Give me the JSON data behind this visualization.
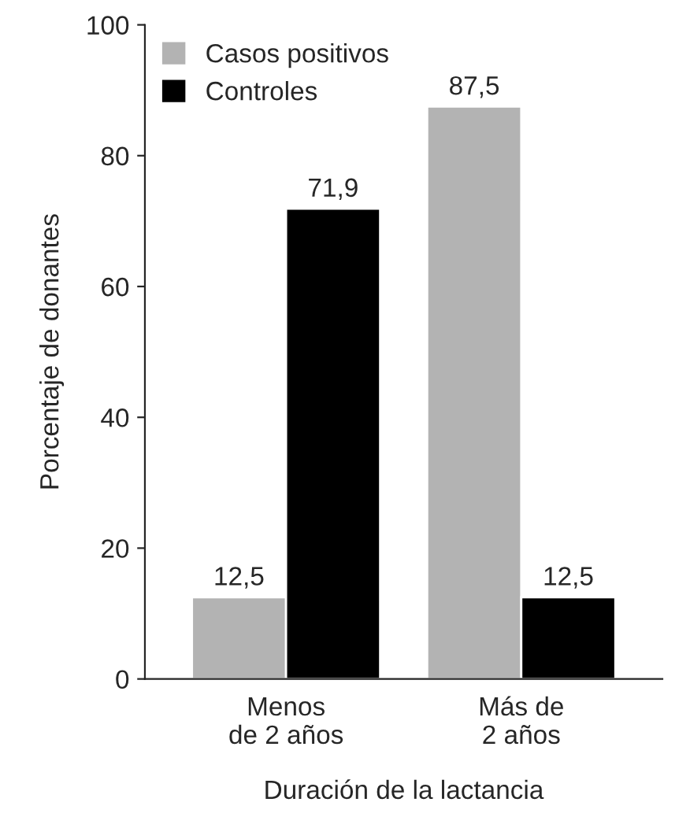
{
  "chart_data": {
    "type": "bar",
    "xlabel": "Duración de la lactancia",
    "ylabel": "Porcentaje de donantes",
    "categories": [
      "Menos\nde 2 años",
      "Más de\n2 años"
    ],
    "series": [
      {
        "name": "Casos positivos",
        "color": "#b3b3b3",
        "values": [
          12.5,
          87.5
        ],
        "value_labels": [
          "12,5",
          "87,5"
        ]
      },
      {
        "name": "Controles",
        "color": "#000000",
        "values": [
          71.9,
          12.5
        ],
        "value_labels": [
          "71,9",
          "12,5"
        ]
      }
    ],
    "ylim": [
      0,
      100
    ],
    "yticks": [
      0,
      20,
      40,
      60,
      80,
      100
    ],
    "grid": false,
    "legend": "top left"
  }
}
